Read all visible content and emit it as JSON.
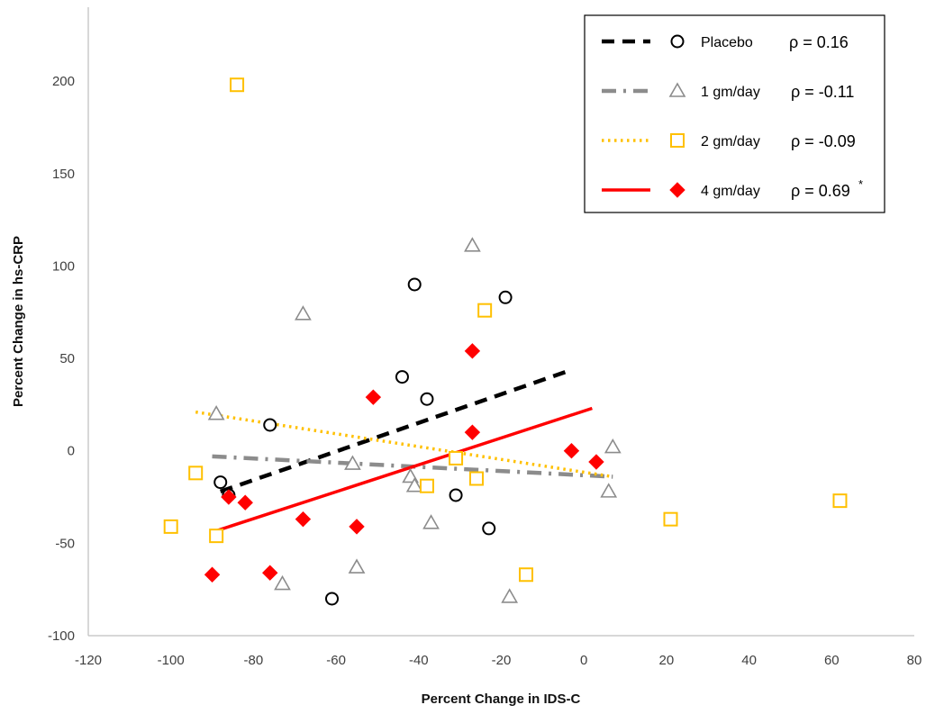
{
  "chart_data": {
    "type": "scatter",
    "xlabel": "Percent Change in IDS-C",
    "ylabel": "Percent Change in hs-CRP",
    "xlim": [
      -120,
      80
    ],
    "ylim": [
      -100,
      240
    ],
    "x_ticks": [
      "-120",
      "-100",
      "-80",
      "-60",
      "-40",
      "-20",
      "0",
      "20",
      "40",
      "60",
      "80"
    ],
    "y_ticks": [
      "-100",
      "-50",
      "0",
      "50",
      "100",
      "150",
      "200"
    ],
    "grid": false,
    "legend_position": "top-right",
    "series": [
      {
        "name": "Placebo",
        "rho": "ρ = 0.16",
        "marker": "circle",
        "color": "#000000",
        "line_style": "dashed",
        "points": [
          [
            -88,
            -17
          ],
          [
            -86,
            -24
          ],
          [
            -76,
            14
          ],
          [
            -61,
            -80
          ],
          [
            -44,
            40
          ],
          [
            -41,
            90
          ],
          [
            -38,
            28
          ],
          [
            -31,
            -24
          ],
          [
            -23,
            -42
          ],
          [
            -19,
            83
          ]
        ],
        "trendline": [
          [
            -88,
            -22
          ],
          [
            -4,
            43
          ]
        ]
      },
      {
        "name": "1 gm/day",
        "rho": "ρ = -0.11",
        "marker": "triangle",
        "color": "#8c8c8c",
        "line_style": "dash-dot",
        "points": [
          [
            -89,
            20
          ],
          [
            -73,
            -72
          ],
          [
            -68,
            74
          ],
          [
            -56,
            -7
          ],
          [
            -55,
            -63
          ],
          [
            -42,
            -14
          ],
          [
            -41,
            -19
          ],
          [
            -37,
            -39
          ],
          [
            -27,
            111
          ],
          [
            -18,
            -79
          ],
          [
            6,
            -22
          ],
          [
            7,
            2
          ]
        ],
        "trendline": [
          [
            -90,
            -3
          ],
          [
            7,
            -14
          ]
        ]
      },
      {
        "name": "2 gm/day",
        "rho": "ρ = -0.09",
        "marker": "square",
        "color": "#ffc000",
        "line_style": "dotted",
        "points": [
          [
            -100,
            -41
          ],
          [
            -94,
            -12
          ],
          [
            -89,
            -46
          ],
          [
            -84,
            198
          ],
          [
            -38,
            -19
          ],
          [
            -31,
            -4
          ],
          [
            -26,
            -15
          ],
          [
            -24,
            76
          ],
          [
            -14,
            -67
          ],
          [
            21,
            -37
          ],
          [
            62,
            -27
          ]
        ],
        "trendline": [
          [
            -94,
            21
          ],
          [
            7,
            -14
          ]
        ]
      },
      {
        "name": "4 gm/day",
        "rho": "ρ = 0.69",
        "rho_marker": "*",
        "marker": "diamond",
        "color": "#ff0000",
        "line_style": "solid",
        "points": [
          [
            -90,
            -67
          ],
          [
            -86,
            -25
          ],
          [
            -82,
            -28
          ],
          [
            -76,
            -66
          ],
          [
            -68,
            -37
          ],
          [
            -55,
            -41
          ],
          [
            -51,
            29
          ],
          [
            -27,
            54
          ],
          [
            -27,
            10
          ],
          [
            -3,
            0
          ],
          [
            3,
            -6
          ]
        ],
        "trendline": [
          [
            -90,
            -44
          ],
          [
            2,
            23
          ]
        ]
      }
    ]
  }
}
